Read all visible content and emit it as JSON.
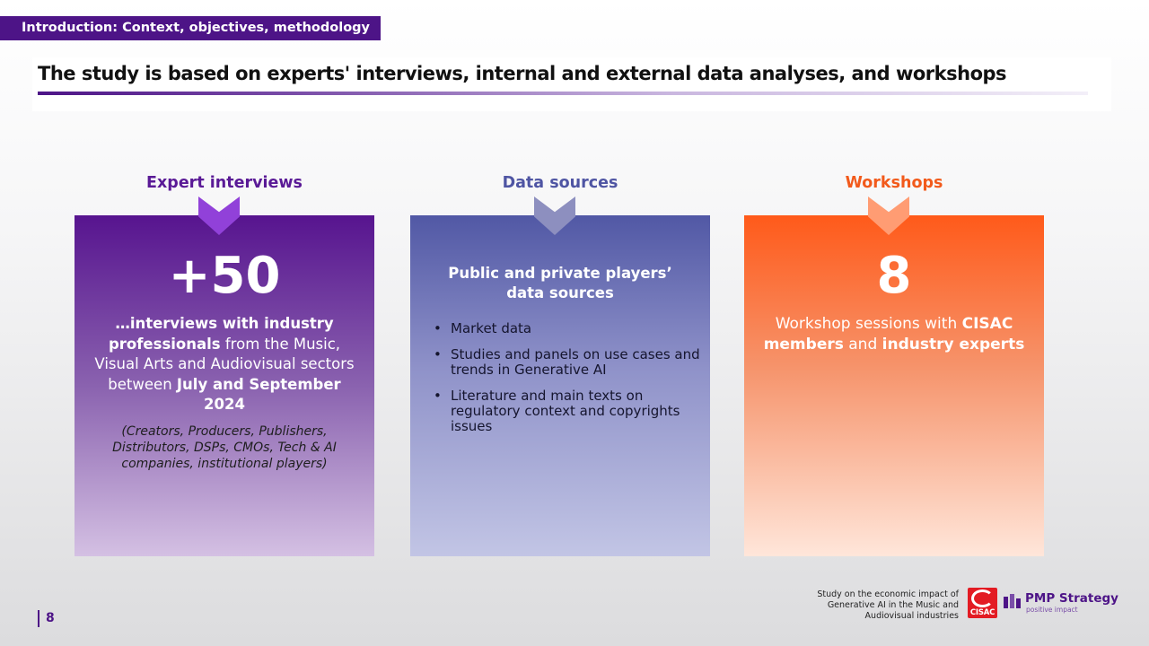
{
  "section_tag": "Introduction: Context, objectives, methodology",
  "title": "The study is based on experts' interviews, internal and external data analyses, and workshops",
  "columns": [
    {
      "heading": "Expert interviews",
      "big_number": "+50",
      "body": {
        "b1": "…interviews with industry professionals",
        "t1": " from the Music, Visual Arts and Audiovisual sectors between ",
        "b2": "July and September 2024"
      },
      "note": "(Creators, Producers, Publishers, Distributors, DSPs, CMOs, Tech & AI companies, institutional players)"
    },
    {
      "heading": "Data sources",
      "card_title": "Public and private players’ data sources",
      "bullets": [
        "Market data",
        "Studies and panels on use cases and trends in Generative AI",
        "Literature and main texts on regulatory context and copyrights issues"
      ]
    },
    {
      "heading": "Workshops",
      "big_number": "8",
      "body": {
        "t1": "Workshop sessions with ",
        "b1": "CISAC members",
        "t2": " and ",
        "b2": "industry experts"
      }
    }
  ],
  "colors": {
    "purple": "#4d1487",
    "indigo": "#5158a5",
    "orange": "#ff5a1a"
  },
  "footer": {
    "page_number": "8",
    "caption": "Study on the economic impact of Generative AI in the Music and Audiovisual industries",
    "cisac_logo_text": "CISAC",
    "pmp_name": "PMP Strategy",
    "pmp_tagline": "positive impact"
  }
}
